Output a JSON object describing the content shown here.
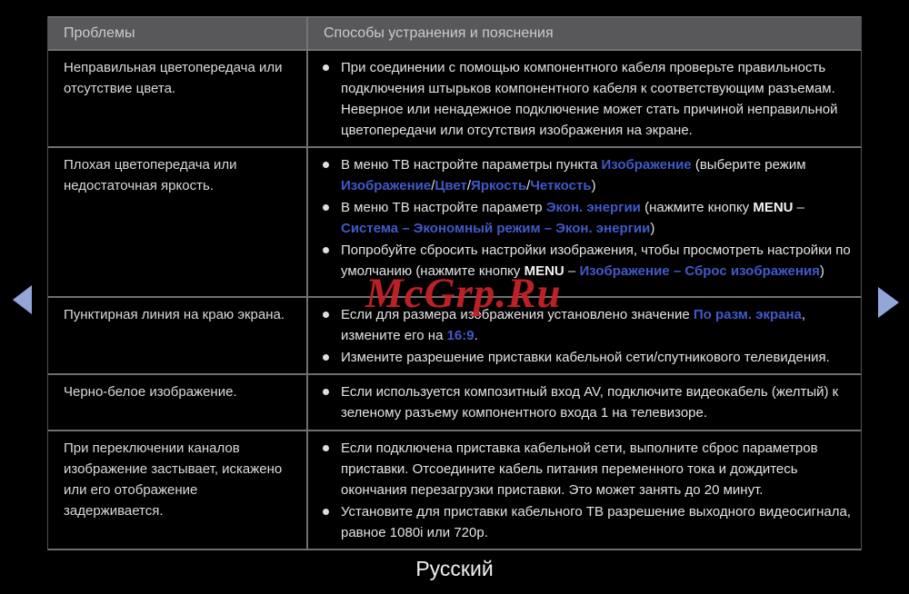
{
  "page": {
    "language_label": "Русский"
  },
  "watermark": {
    "text": "McGrp.Ru",
    "color": "#c42228"
  },
  "nav": {
    "arrow_color": "#93a6d8"
  },
  "colors": {
    "link_blue": "#4159c8",
    "header_bg": "#58585a",
    "border_gray": "#6f6f71"
  },
  "table": {
    "header_problems": "Проблемы",
    "header_solutions": "Способы устранения и пояснения",
    "rows": [
      {
        "problem": "Неправильная цветопередача или отсутствие цвета.",
        "items": [
          [
            {
              "k": "p",
              "t": "При соединении с помощью компонентного кабеля проверьте правильность подключения штырьков компонентного кабеля к соответствующим разъемам. Неверное или ненадежное подключение может стать причиной неправильной цветопередачи или отсутствия изображения на экране."
            }
          ]
        ]
      },
      {
        "problem": "Плохая цветопередача или недостаточная яркость.",
        "items": [
          [
            {
              "k": "p",
              "t": "В меню ТВ настройте параметры пункта "
            },
            {
              "k": "b",
              "t": "Изображение"
            },
            {
              "k": "p",
              "t": " (выберите режим "
            },
            {
              "k": "b",
              "t": "Изображение"
            },
            {
              "k": "p",
              "t": "/"
            },
            {
              "k": "b",
              "t": "Цвет"
            },
            {
              "k": "p",
              "t": "/"
            },
            {
              "k": "b",
              "t": "Яркость"
            },
            {
              "k": "p",
              "t": "/"
            },
            {
              "k": "b",
              "t": "Четкость"
            },
            {
              "k": "p",
              "t": ")"
            }
          ],
          [
            {
              "k": "p",
              "t": "В меню ТВ настройте параметр "
            },
            {
              "k": "b",
              "t": "Экон. энергии"
            },
            {
              "k": "p",
              "t": " (нажмите кнопку "
            },
            {
              "k": "m",
              "t": "MENU"
            },
            {
              "k": "p",
              "t": " – "
            },
            {
              "k": "b",
              "t": "Система – Экономный режим – Экон. энергии"
            },
            {
              "k": "p",
              "t": ")"
            }
          ],
          [
            {
              "k": "p",
              "t": "Попробуйте сбросить настройки изображения, чтобы просмотреть настройки по умолчанию (нажмите кнопку  "
            },
            {
              "k": "m",
              "t": "MENU"
            },
            {
              "k": "p",
              "t": " – "
            },
            {
              "k": "b",
              "t": "Изображение – Сброс изображения"
            },
            {
              "k": "p",
              "t": ")"
            }
          ]
        ]
      },
      {
        "problem": "Пунктирная линия на краю экрана.",
        "items": [
          [
            {
              "k": "p",
              "t": "Если для размера изображения установлено значение "
            },
            {
              "k": "b",
              "t": "По разм. экрана"
            },
            {
              "k": "p",
              "t": ", измените его на "
            },
            {
              "k": "b",
              "t": "16:9"
            },
            {
              "k": "p",
              "t": "."
            }
          ],
          [
            {
              "k": "p",
              "t": "Измените разрешение приставки кабельной сети/спутникового телевидения."
            }
          ]
        ]
      },
      {
        "problem": "Черно-белое изображение.",
        "items": [
          [
            {
              "k": "p",
              "t": "Если используется композитный вход AV, подключите видеокабель (желтый) к зеленому разъему компонентного входа 1 на телевизоре."
            }
          ]
        ]
      },
      {
        "problem": "При переключении каналов изображение застывает, искажено или его отображение задерживается.",
        "items": [
          [
            {
              "k": "p",
              "t": "Если подключена приставка кабельной сети, выполните сброс параметров приставки. Отсоедините кабель питания переменного тока и дождитесь окончания перезагрузки приставки. Это может занять до 20 минут."
            }
          ],
          [
            {
              "k": "p",
              "t": "Установите для приставки кабельного ТВ разрешение выходного видеосигнала, равное 1080i или 720p."
            }
          ]
        ]
      }
    ]
  }
}
